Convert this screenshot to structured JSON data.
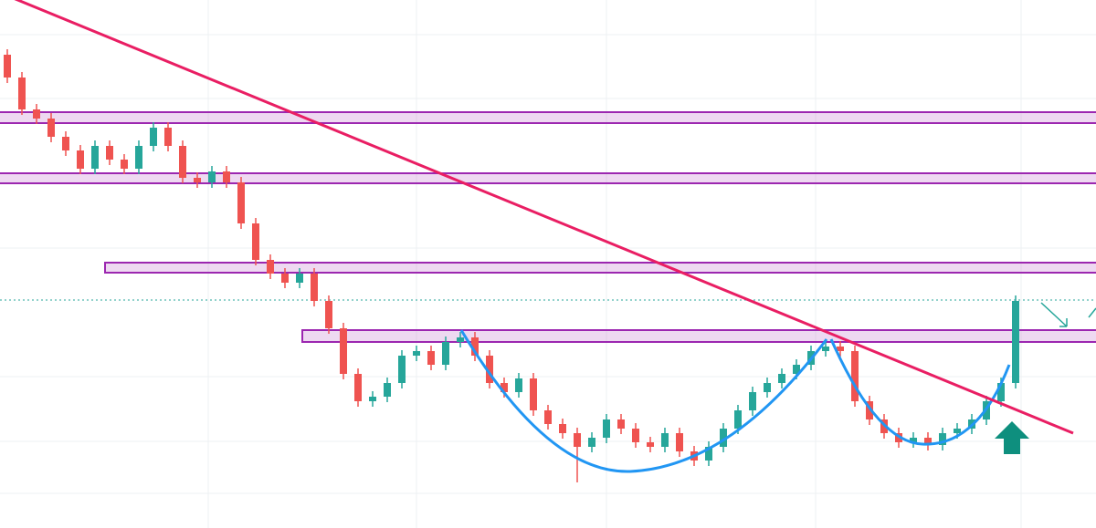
{
  "chart_data": {
    "type": "candlestick",
    "up_color": "#26a69a",
    "down_color": "#ef5350",
    "ylim": [
      0,
      579
    ],
    "open": [
      519,
      494,
      459,
      449,
      429,
      414,
      394,
      419,
      404,
      394,
      419,
      439,
      419,
      384,
      379,
      391,
      379,
      334,
      294,
      279,
      269,
      279,
      249,
      219,
      169,
      139,
      144,
      159,
      189,
      194,
      179,
      204,
      209,
      189,
      159,
      149,
      164,
      129,
      114,
      104,
      89,
      99,
      119,
      109,
      94,
      89,
      104,
      84,
      74,
      89,
      109,
      129,
      149,
      159,
      169,
      179,
      194,
      199,
      194,
      139,
      119,
      104,
      94,
      99,
      91,
      104,
      109,
      119,
      139,
      159
    ],
    "high": [
      525,
      500,
      465,
      455,
      435,
      420,
      425,
      425,
      410,
      425,
      445,
      445,
      425,
      390,
      397,
      397,
      385,
      340,
      300,
      285,
      285,
      285,
      255,
      225,
      175,
      150,
      165,
      195,
      200,
      200,
      210,
      215,
      215,
      195,
      165,
      170,
      170,
      135,
      120,
      110,
      105,
      125,
      125,
      115,
      100,
      110,
      110,
      90,
      95,
      115,
      135,
      155,
      165,
      175,
      185,
      200,
      205,
      205,
      200,
      145,
      125,
      110,
      105,
      105,
      110,
      115,
      125,
      145,
      165,
      255
    ],
    "low": [
      488,
      453,
      443,
      423,
      408,
      388,
      388,
      398,
      388,
      388,
      413,
      413,
      378,
      373,
      373,
      373,
      328,
      288,
      273,
      263,
      263,
      243,
      213,
      163,
      133,
      133,
      138,
      153,
      183,
      173,
      173,
      198,
      183,
      153,
      143,
      143,
      123,
      108,
      98,
      50,
      83,
      93,
      103,
      88,
      83,
      83,
      78,
      68,
      68,
      83,
      103,
      123,
      143,
      153,
      163,
      173,
      188,
      188,
      133,
      113,
      98,
      88,
      88,
      85,
      85,
      98,
      103,
      113,
      133,
      153
    ],
    "close": [
      494,
      459,
      449,
      429,
      414,
      394,
      419,
      404,
      394,
      419,
      439,
      419,
      384,
      379,
      391,
      379,
      334,
      294,
      279,
      269,
      279,
      249,
      219,
      169,
      139,
      144,
      159,
      189,
      194,
      179,
      204,
      209,
      189,
      159,
      149,
      164,
      129,
      114,
      104,
      89,
      99,
      119,
      109,
      94,
      89,
      104,
      84,
      74,
      89,
      109,
      129,
      149,
      159,
      169,
      179,
      194,
      199,
      194,
      139,
      119,
      104,
      94,
      99,
      91,
      104,
      109,
      119,
      139,
      159,
      249
    ]
  }
}
